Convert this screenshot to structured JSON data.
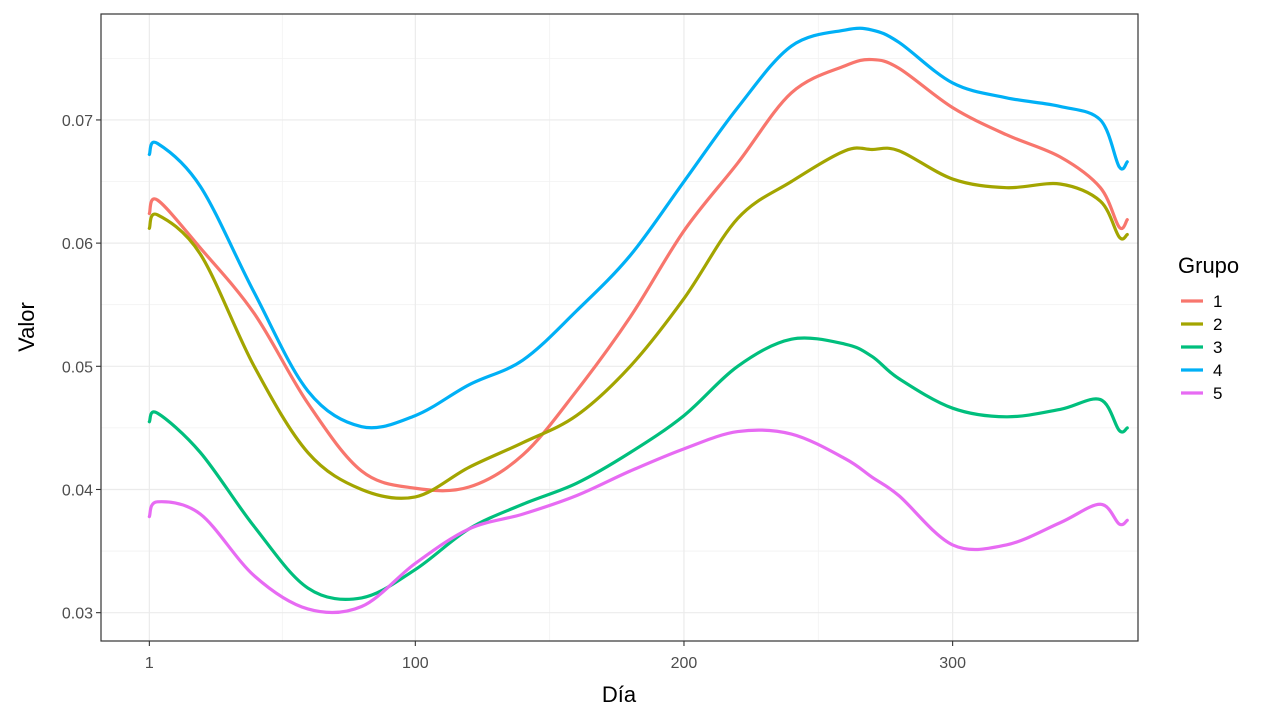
{
  "chart_data": {
    "type": "line",
    "title": "",
    "xlabel": "Día",
    "ylabel": "Valor",
    "xlim": [
      -17,
      369
    ],
    "ylim": [
      0.0277,
      0.0786
    ],
    "x_ticks": [
      1,
      100,
      200,
      300
    ],
    "y_ticks": [
      0.03,
      0.04,
      0.05,
      0.06,
      0.07
    ],
    "y_tick_labels": [
      "0.03",
      "0.04",
      "0.05",
      "0.06",
      "0.07"
    ],
    "grid": true,
    "legend": {
      "title": "Grupo",
      "position": "right"
    },
    "x": [
      1,
      4,
      20,
      40,
      60,
      80,
      100,
      120,
      140,
      160,
      180,
      200,
      220,
      240,
      260,
      270,
      280,
      300,
      320,
      340,
      355,
      362,
      365
    ],
    "series": [
      {
        "name": "1",
        "color": "#F8766D",
        "values": [
          0.0624,
          0.0635,
          0.0596,
          0.0543,
          0.047,
          0.0415,
          0.0401,
          0.0402,
          0.0428,
          0.048,
          0.054,
          0.061,
          0.0665,
          0.0722,
          0.0744,
          0.0749,
          0.0742,
          0.071,
          0.0688,
          0.067,
          0.0645,
          0.0613,
          0.0619
        ]
      },
      {
        "name": "2",
        "color": "#A3A500",
        "values": [
          0.0612,
          0.0623,
          0.0591,
          0.05,
          0.043,
          0.04,
          0.0394,
          0.0418,
          0.0438,
          0.046,
          0.05,
          0.0555,
          0.062,
          0.065,
          0.0675,
          0.0676,
          0.0675,
          0.0652,
          0.0645,
          0.0648,
          0.0634,
          0.0605,
          0.0607
        ]
      },
      {
        "name": "3",
        "color": "#00BF7D",
        "values": [
          0.0455,
          0.0462,
          0.043,
          0.037,
          0.032,
          0.0312,
          0.0335,
          0.0368,
          0.0388,
          0.0405,
          0.043,
          0.046,
          0.05,
          0.0522,
          0.0518,
          0.0508,
          0.049,
          0.0466,
          0.0459,
          0.0465,
          0.0473,
          0.0448,
          0.045
        ]
      },
      {
        "name": "4",
        "color": "#00B0F6",
        "values": [
          0.0672,
          0.0681,
          0.0646,
          0.056,
          0.048,
          0.0451,
          0.046,
          0.0485,
          0.0505,
          0.0545,
          0.059,
          0.065,
          0.071,
          0.076,
          0.0773,
          0.0773,
          0.0763,
          0.073,
          0.0718,
          0.0711,
          0.07,
          0.0662,
          0.0666
        ]
      },
      {
        "name": "5",
        "color": "#E76BF3",
        "values": [
          0.0378,
          0.039,
          0.038,
          0.033,
          0.0303,
          0.0305,
          0.034,
          0.0368,
          0.038,
          0.0395,
          0.0415,
          0.0433,
          0.0447,
          0.0445,
          0.0425,
          0.041,
          0.0395,
          0.0355,
          0.0355,
          0.0373,
          0.0388,
          0.0372,
          0.0375
        ]
      }
    ]
  }
}
